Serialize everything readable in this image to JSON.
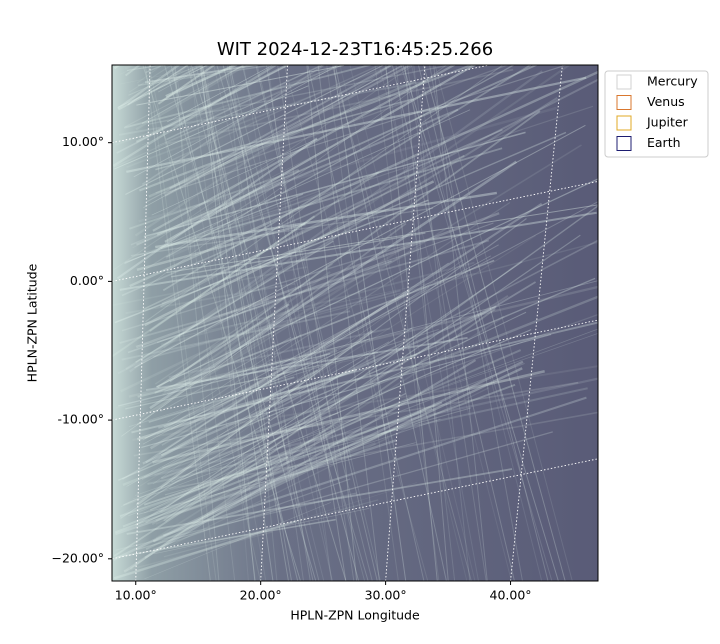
{
  "chart_data": {
    "type": "image",
    "title": "WIT 2024-12-23T16:45:25.266",
    "x_label": "HPLN-ZPN Longitude",
    "y_label": "HPLN-ZPN Latitude",
    "xlim": [
      8.1,
      47.0
    ],
    "ylim": [
      -21.6,
      15.6
    ],
    "xticks": [
      {
        "value": 10,
        "label": "10.00°"
      },
      {
        "value": 20,
        "label": "20.00°"
      },
      {
        "value": 30,
        "label": "30.00°"
      },
      {
        "value": 40,
        "label": "40.00°"
      }
    ],
    "yticks": [
      {
        "value": 10,
        "label": "10.00°"
      },
      {
        "value": 0,
        "label": "0.00°"
      },
      {
        "value": -10,
        "label": "-10.00°"
      },
      {
        "value": -20,
        "label": "−20.00°"
      }
    ],
    "grid": true,
    "legend_position": "upper right outside",
    "legend": [
      {
        "name": "Mercury",
        "color": "#d0d0d0"
      },
      {
        "name": "Venus",
        "color": "#d9772e"
      },
      {
        "name": "Jupiter",
        "color": "#e0a825"
      },
      {
        "name": "Earth",
        "color": "#1c1c70"
      }
    ]
  }
}
